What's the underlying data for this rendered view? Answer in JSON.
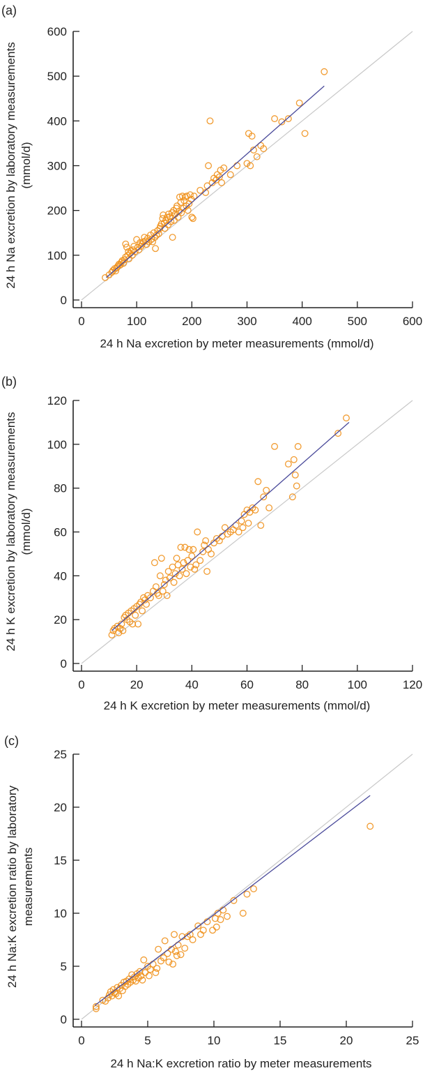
{
  "chart_data": [
    {
      "type": "scatter",
      "panel_label": "(a)",
      "xlabel": "24 h Na excretion by meter measurements (mmol/d)",
      "ylabel_lines": [
        "24 h Na excretion by laboratory measurements",
        "(mmol/d)"
      ],
      "xlim": [
        0,
        600
      ],
      "ylim": [
        0,
        600
      ],
      "xticks": [
        0,
        100,
        200,
        300,
        400,
        500,
        600
      ],
      "yticks": [
        0,
        100,
        200,
        300,
        400,
        500,
        600
      ],
      "grid": false,
      "identity_line": {
        "from": [
          0,
          0
        ],
        "to": [
          600,
          600
        ],
        "color": "#c8c8c8"
      },
      "regression_line": {
        "from": [
          45,
          50
        ],
        "to": [
          440,
          478
        ],
        "color": "#4a4a9a"
      },
      "marker_color": "#f0901a",
      "points": [
        [
          43,
          50
        ],
        [
          50,
          56
        ],
        [
          55,
          62
        ],
        [
          57,
          66
        ],
        [
          60,
          70
        ],
        [
          62,
          65
        ],
        [
          64,
          72
        ],
        [
          66,
          76
        ],
        [
          68,
          80
        ],
        [
          70,
          78
        ],
        [
          72,
          84
        ],
        [
          74,
          88
        ],
        [
          76,
          82
        ],
        [
          78,
          90
        ],
        [
          80,
          96
        ],
        [
          80,
          125
        ],
        [
          82,
          118
        ],
        [
          84,
          100
        ],
        [
          85,
          108
        ],
        [
          86,
          92
        ],
        [
          88,
          104
        ],
        [
          90,
          110
        ],
        [
          92,
          100
        ],
        [
          93,
          112
        ],
        [
          95,
          120
        ],
        [
          97,
          108
        ],
        [
          100,
          135
        ],
        [
          102,
          118
        ],
        [
          104,
          112
        ],
        [
          106,
          128
        ],
        [
          108,
          120
        ],
        [
          110,
          125
        ],
        [
          112,
          130
        ],
        [
          114,
          140
        ],
        [
          116,
          132
        ],
        [
          118,
          124
        ],
        [
          120,
          138
        ],
        [
          122,
          130
        ],
        [
          125,
          145
        ],
        [
          127,
          136
        ],
        [
          129,
          130
        ],
        [
          131,
          150
        ],
        [
          133,
          140
        ],
        [
          134,
          115
        ],
        [
          136,
          145
        ],
        [
          138,
          155
        ],
        [
          140,
          148
        ],
        [
          142,
          160
        ],
        [
          143,
          165
        ],
        [
          145,
          170
        ],
        [
          147,
          182
        ],
        [
          148,
          190
        ],
        [
          150,
          172
        ],
        [
          151,
          160
        ],
        [
          153,
          178
        ],
        [
          155,
          185
        ],
        [
          157,
          168
        ],
        [
          158,
          192
        ],
        [
          160,
          186
        ],
        [
          162,
          175
        ],
        [
          164,
          195
        ],
        [
          165,
          140
        ],
        [
          167,
          200
        ],
        [
          168,
          178
        ],
        [
          170,
          192
        ],
        [
          172,
          205
        ],
        [
          173,
          210
        ],
        [
          175,
          185
        ],
        [
          177,
          198
        ],
        [
          178,
          230
        ],
        [
          180,
          218
        ],
        [
          181,
          195
        ],
        [
          183,
          232
        ],
        [
          185,
          205
        ],
        [
          186,
          222
        ],
        [
          188,
          230
        ],
        [
          190,
          210
        ],
        [
          191,
          232
        ],
        [
          193,
          200
        ],
        [
          195,
          215
        ],
        [
          197,
          235
        ],
        [
          199,
          225
        ],
        [
          200,
          185
        ],
        [
          202,
          182
        ],
        [
          204,
          232
        ],
        [
          215,
          245
        ],
        [
          225,
          240
        ],
        [
          228,
          255
        ],
        [
          230,
          300
        ],
        [
          233,
          400
        ],
        [
          237,
          262
        ],
        [
          240,
          272
        ],
        [
          244,
          268
        ],
        [
          246,
          280
        ],
        [
          250,
          275
        ],
        [
          252,
          290
        ],
        [
          254,
          262
        ],
        [
          258,
          295
        ],
        [
          270,
          280
        ],
        [
          282,
          300
        ],
        [
          300,
          305
        ],
        [
          303,
          372
        ],
        [
          306,
          300
        ],
        [
          309,
          366
        ],
        [
          312,
          335
        ],
        [
          318,
          320
        ],
        [
          325,
          345
        ],
        [
          330,
          338
        ],
        [
          350,
          405
        ],
        [
          363,
          398
        ],
        [
          375,
          405
        ],
        [
          395,
          440
        ],
        [
          405,
          372
        ],
        [
          440,
          510
        ]
      ]
    },
    {
      "type": "scatter",
      "panel_label": "(b)",
      "xlabel": "24 h K excretion by meter measurements (mmol/d)",
      "ylabel_lines": [
        "24 h K excretion by laboratory measurements",
        "(mmol/d)"
      ],
      "xlim": [
        0,
        120
      ],
      "ylim": [
        0,
        120
      ],
      "xticks": [
        0,
        20,
        40,
        60,
        80,
        100,
        120
      ],
      "yticks": [
        0,
        20,
        40,
        60,
        80,
        100,
        120
      ],
      "grid": false,
      "identity_line": {
        "from": [
          0,
          0
        ],
        "to": [
          120,
          120
        ],
        "color": "#c8c8c8"
      },
      "regression_line": {
        "from": [
          11,
          15
        ],
        "to": [
          97,
          110
        ],
        "color": "#4a4a9a"
      },
      "marker_color": "#f0901a",
      "points": [
        [
          11,
          13
        ],
        [
          11.5,
          15
        ],
        [
          12,
          16
        ],
        [
          13,
          17
        ],
        [
          13.5,
          14
        ],
        [
          14,
          16
        ],
        [
          14.5,
          18
        ],
        [
          15,
          15
        ],
        [
          15.5,
          21
        ],
        [
          16,
          22
        ],
        [
          16.5,
          20
        ],
        [
          17,
          23
        ],
        [
          17.5,
          19
        ],
        [
          18,
          24
        ],
        [
          18.5,
          18
        ],
        [
          19,
          25
        ],
        [
          19.5,
          22
        ],
        [
          20,
          26
        ],
        [
          20.5,
          18
        ],
        [
          21,
          27
        ],
        [
          21.5,
          28
        ],
        [
          22,
          24
        ],
        [
          22.5,
          30
        ],
        [
          23,
          29
        ],
        [
          23.5,
          27
        ],
        [
          24,
          31
        ],
        [
          25,
          30
        ],
        [
          26,
          33
        ],
        [
          26.5,
          46
        ],
        [
          27,
          35
        ],
        [
          27.5,
          32
        ],
        [
          28,
          31
        ],
        [
          28.5,
          40
        ],
        [
          29,
          48
        ],
        [
          29.5,
          33
        ],
        [
          30,
          36
        ],
        [
          30.5,
          38
        ],
        [
          31,
          31
        ],
        [
          31.5,
          42
        ],
        [
          32,
          39
        ],
        [
          33,
          44
        ],
        [
          33.5,
          37
        ],
        [
          34,
          41
        ],
        [
          34.5,
          48
        ],
        [
          35,
          45
        ],
        [
          35.5,
          40
        ],
        [
          36,
          53
        ],
        [
          36.5,
          43
        ],
        [
          37,
          46
        ],
        [
          37.5,
          53
        ],
        [
          38,
          41
        ],
        [
          38.5,
          47
        ],
        [
          39,
          52
        ],
        [
          39.5,
          44
        ],
        [
          40,
          49
        ],
        [
          40.5,
          52
        ],
        [
          41,
          43
        ],
        [
          41.5,
          45
        ],
        [
          42,
          60
        ],
        [
          43,
          47
        ],
        [
          44,
          51
        ],
        [
          44.5,
          54
        ],
        [
          45,
          56
        ],
        [
          45.5,
          42
        ],
        [
          46,
          52
        ],
        [
          47,
          50
        ],
        [
          48,
          55
        ],
        [
          49,
          57
        ],
        [
          50,
          56
        ],
        [
          51,
          58
        ],
        [
          52,
          62
        ],
        [
          53,
          59
        ],
        [
          54,
          60
        ],
        [
          55,
          61
        ],
        [
          56,
          63
        ],
        [
          57,
          60
        ],
        [
          58,
          65
        ],
        [
          58.5,
          62
        ],
        [
          59,
          68
        ],
        [
          60,
          70
        ],
        [
          60.5,
          64
        ],
        [
          61,
          69
        ],
        [
          62,
          71
        ],
        [
          63,
          70
        ],
        [
          64,
          83
        ],
        [
          65,
          63
        ],
        [
          66,
          76
        ],
        [
          67,
          79
        ],
        [
          68,
          71
        ],
        [
          70,
          99
        ],
        [
          75,
          91
        ],
        [
          76.5,
          76
        ],
        [
          77,
          93
        ],
        [
          77.5,
          86
        ],
        [
          78,
          81
        ],
        [
          78.5,
          99
        ],
        [
          93,
          105
        ],
        [
          96,
          112
        ]
      ]
    },
    {
      "type": "scatter",
      "panel_label": "(c)",
      "xlabel": "24 h Na:K excretion ratio by meter measurements",
      "ylabel_lines": [
        "24 h Na:K excretion ratio by laboratory",
        "measurements"
      ],
      "xlim": [
        0,
        25
      ],
      "ylim": [
        0,
        25
      ],
      "xticks": [
        0,
        5,
        10,
        15,
        20,
        25
      ],
      "yticks": [
        0,
        5,
        10,
        15,
        20,
        25
      ],
      "grid": false,
      "identity_line": {
        "from": [
          0,
          0
        ],
        "to": [
          25,
          25
        ],
        "color": "#c8c8c8"
      },
      "regression_line": {
        "from": [
          1,
          1.3
        ],
        "to": [
          21.8,
          21.1
        ],
        "color": "#4a4a9a"
      },
      "marker_color": "#f0901a",
      "points": [
        [
          1.1,
          1.0
        ],
        [
          1.1,
          1.2
        ],
        [
          1.6,
          1.8
        ],
        [
          1.8,
          1.7
        ],
        [
          2.0,
          2.0
        ],
        [
          2.1,
          2.3
        ],
        [
          2.2,
          2.6
        ],
        [
          2.3,
          2.2
        ],
        [
          2.4,
          2.8
        ],
        [
          2.5,
          2.5
        ],
        [
          2.6,
          2.4
        ],
        [
          2.7,
          3.0
        ],
        [
          2.8,
          2.2
        ],
        [
          2.9,
          2.9
        ],
        [
          3.0,
          3.2
        ],
        [
          3.1,
          2.7
        ],
        [
          3.2,
          3.5
        ],
        [
          3.3,
          3.1
        ],
        [
          3.4,
          3.6
        ],
        [
          3.5,
          3.3
        ],
        [
          3.6,
          3.8
        ],
        [
          3.7,
          3.5
        ],
        [
          3.8,
          4.2
        ],
        [
          3.9,
          3.7
        ],
        [
          4.0,
          4.0
        ],
        [
          4.1,
          3.6
        ],
        [
          4.2,
          4.3
        ],
        [
          4.3,
          3.9
        ],
        [
          4.4,
          4.5
        ],
        [
          4.5,
          4.1
        ],
        [
          4.6,
          3.7
        ],
        [
          4.7,
          5.6
        ],
        [
          4.8,
          4.4
        ],
        [
          5.0,
          5.0
        ],
        [
          5.1,
          4.1
        ],
        [
          5.2,
          4.7
        ],
        [
          5.4,
          5.2
        ],
        [
          5.6,
          4.4
        ],
        [
          5.7,
          4.8
        ],
        [
          5.8,
          6.6
        ],
        [
          6.0,
          5.5
        ],
        [
          6.2,
          5.8
        ],
        [
          6.3,
          7.4
        ],
        [
          6.5,
          6.2
        ],
        [
          6.6,
          5.4
        ],
        [
          6.8,
          6.6
        ],
        [
          6.9,
          5.2
        ],
        [
          7.0,
          8.0
        ],
        [
          7.1,
          6.4
        ],
        [
          7.2,
          6.0
        ],
        [
          7.3,
          7.0
        ],
        [
          7.5,
          6.1
        ],
        [
          7.6,
          7.8
        ],
        [
          7.8,
          6.7
        ],
        [
          8.0,
          7.8
        ],
        [
          8.2,
          8.0
        ],
        [
          8.4,
          7.5
        ],
        [
          8.8,
          8.8
        ],
        [
          9.0,
          8.0
        ],
        [
          9.2,
          8.4
        ],
        [
          9.5,
          9.2
        ],
        [
          9.9,
          8.4
        ],
        [
          10.1,
          9.5
        ],
        [
          10.2,
          8.7
        ],
        [
          10.3,
          10.0
        ],
        [
          10.5,
          9.4
        ],
        [
          10.7,
          10.3
        ],
        [
          11.0,
          9.7
        ],
        [
          11.5,
          11.2
        ],
        [
          12.2,
          10.0
        ],
        [
          12.5,
          11.8
        ],
        [
          13.0,
          12.3
        ],
        [
          21.8,
          18.2
        ]
      ]
    }
  ]
}
